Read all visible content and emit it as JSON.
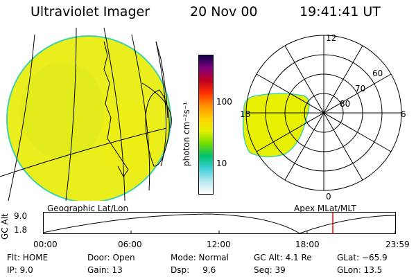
{
  "header": {
    "title": "Ultraviolet Imager",
    "date": "20 Nov 00",
    "time": "19:41:41 UT"
  },
  "colorbar": {
    "unit_label": "photon cm⁻²s⁻¹",
    "tick_100": "100",
    "tick_10": "10",
    "colors": [
      "#ffffff",
      "#b8e8f0",
      "#40d0d8",
      "#00c070",
      "#70dc00",
      "#e6f000",
      "#ffd000",
      "#ff9000",
      "#ff3000",
      "#c00020",
      "#800080",
      "#10004a"
    ]
  },
  "polar_map": {
    "mlt_labels": {
      "top": "12",
      "right": "6",
      "left": "18",
      "bottom": "0"
    },
    "lat_labels": [
      "60",
      "70",
      "80"
    ]
  },
  "map_labels": {
    "geographic": "Geographic Lat/Lon",
    "apex": "Apex MLat/MLT"
  },
  "altitude_plot": {
    "axis_label": "GC Alt",
    "tick_high": "9.0",
    "tick_low": "1.8",
    "time_ticks": [
      "00:00",
      "06:00",
      "12:00",
      "18:00",
      "23:59"
    ]
  },
  "status": {
    "row1": {
      "flt": "Flt: HOME",
      "door": "Door: Open",
      "mode": "Mode: Normal",
      "gc_alt": "GC Alt: 4.1 Re",
      "glat": "GLat: −65.9"
    },
    "row2": {
      "ip": "IP: 9.0",
      "gain": "Gain: 13",
      "dsp": "Dsp:     9.6",
      "seq": "Seq: 39",
      "glon": "GLon: 13.5"
    }
  },
  "colors": {
    "auroral_fill": "#e6f000",
    "edge": "#40d0b0",
    "marker": "#ff0000"
  }
}
